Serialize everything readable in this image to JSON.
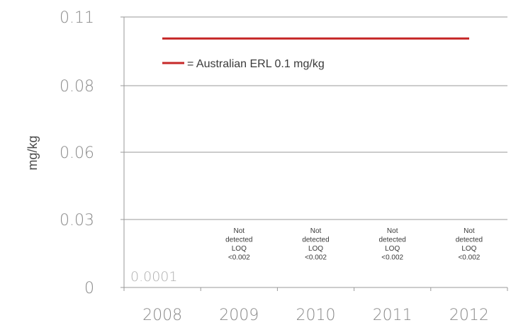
{
  "chart_data": {
    "type": "line",
    "ylabel": "mg/kg",
    "xlabel": "",
    "title": "",
    "categories": [
      "2008",
      "2009",
      "2010",
      "2011",
      "2012"
    ],
    "y_ticks": [
      "0",
      "0.03",
      "0.06",
      "0.08",
      "0.11"
    ],
    "ylim": [
      0,
      0.11
    ],
    "grid": true,
    "reference_line": {
      "value": 0.1,
      "color": "#c62828",
      "legend_label": "= Australian ERL 0.1 mg/kg"
    },
    "data_labels": [
      {
        "category": "2008",
        "text": "0.0001"
      }
    ],
    "notes": [
      {
        "category": "2009",
        "lines": [
          "Not",
          "detected",
          "LOQ",
          "<0.002"
        ]
      },
      {
        "category": "2010",
        "lines": [
          "Not",
          "detected",
          "LOQ",
          "<0.002"
        ]
      },
      {
        "category": "2011",
        "lines": [
          "Not",
          "detected",
          "LOQ",
          "<0.002"
        ]
      },
      {
        "category": "2012",
        "lines": [
          "Not",
          "detected",
          "LOQ",
          "<0.002"
        ]
      }
    ],
    "colors": {
      "grid": "#9a9a9a",
      "axis": "#9a9a9a",
      "ref_line": "#c62828"
    }
  }
}
